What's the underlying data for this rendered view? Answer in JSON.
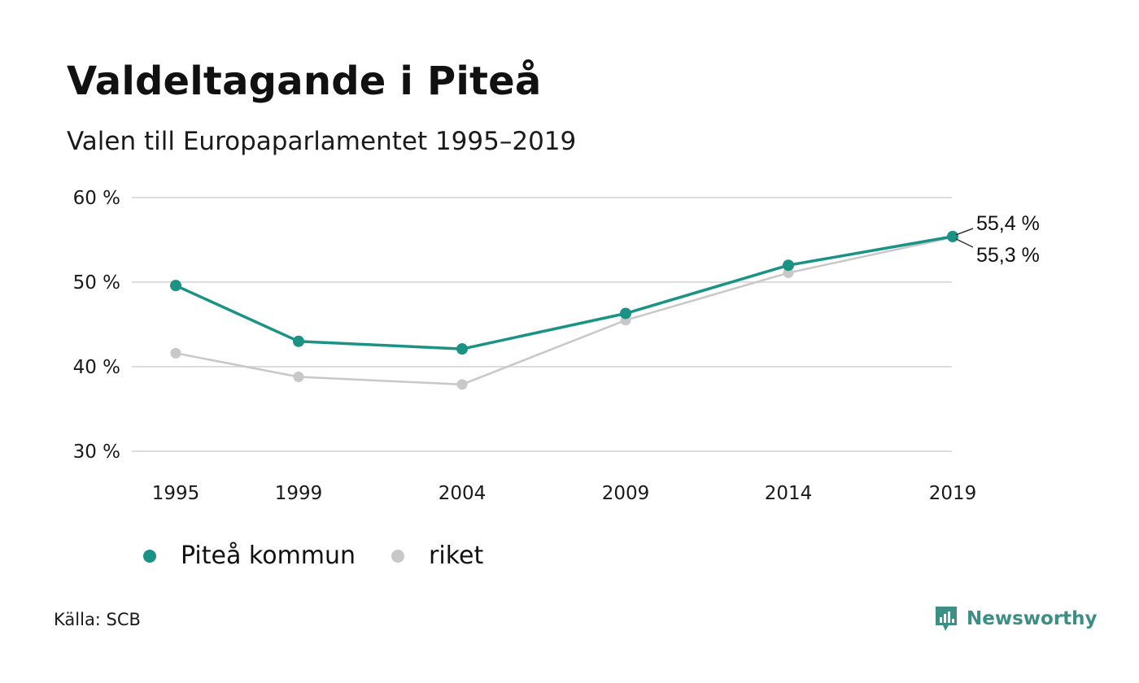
{
  "title": "Valdeltagande i Piteå",
  "subtitle": "Valen till Europaparlamentet 1995–2019",
  "source": "Källa: SCB",
  "brand": {
    "name": "Newsworthy",
    "icon": "newsworthy-logo-icon",
    "color": "#3d8f86"
  },
  "colors": {
    "grid": "#dddddd"
  },
  "chart_data": {
    "type": "line",
    "x": [
      "1995",
      "1999",
      "2004",
      "2009",
      "2014",
      "2019"
    ],
    "ylim": [
      30,
      60
    ],
    "yticks": [
      30,
      40,
      50,
      60
    ],
    "ytick_labels": [
      "30 %",
      "40 %",
      "50 %",
      "60 %"
    ],
    "grid": true,
    "legend_position": "bottom-left",
    "series": [
      {
        "name": "riket",
        "color": "#c8c8c8",
        "values": [
          41.6,
          38.8,
          37.9,
          45.5,
          51.1,
          55.3
        ],
        "end_label": "55,3 %"
      },
      {
        "name": "Piteå kommun",
        "color": "#1a9385",
        "values": [
          49.6,
          43.0,
          42.1,
          46.3,
          52.0,
          55.4
        ],
        "end_label": "55,4 %"
      }
    ]
  }
}
